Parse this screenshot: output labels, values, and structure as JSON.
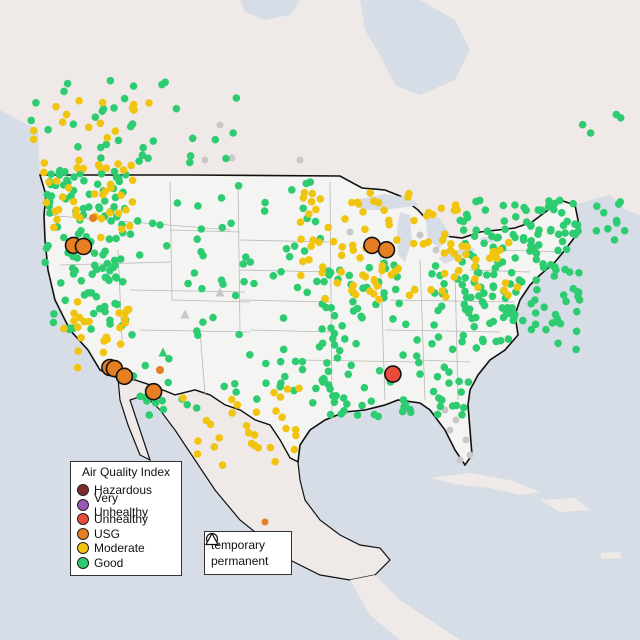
{
  "legend": {
    "title": "Air Quality Index",
    "categories": [
      {
        "label": "Hazardous",
        "color": "#7e2a2a"
      },
      {
        "label": "Very Unhealthy",
        "color": "#9b59b6"
      },
      {
        "label": "Unhealthy",
        "color": "#e74c3c"
      },
      {
        "label": "USG",
        "color": "#e67e22"
      },
      {
        "label": "Moderate",
        "color": "#f1c40f"
      },
      {
        "label": "Good",
        "color": "#2ecc71"
      }
    ],
    "monitor_types": [
      {
        "label": "temporary",
        "symbol": "circle"
      },
      {
        "label": "permanent",
        "symbol": "triangle"
      }
    ]
  },
  "map_style": {
    "water": "#d6dde6",
    "land": "#efeae8",
    "us_land": "#f4f4f2",
    "state_border": "#b8b8b8",
    "country_border": "#111111",
    "no_data_monitor": "#c8c8c8"
  },
  "highlight_monitors": [
    {
      "category": "USG",
      "lat": 45.6,
      "lon": -121.2
    },
    {
      "category": "USG",
      "lat": 45.5,
      "lon": -120.1
    },
    {
      "category": "USG",
      "lat": 45.6,
      "lon": -88.4
    },
    {
      "category": "USG",
      "lat": 45.2,
      "lon": -86.8
    },
    {
      "category": "USG",
      "lat": 34.5,
      "lon": -117.2
    },
    {
      "category": "USG",
      "lat": 34.4,
      "lon": -116.7
    },
    {
      "category": "USG",
      "lat": 33.7,
      "lon": -115.6
    },
    {
      "category": "USG",
      "lat": 32.3,
      "lon": -112.4
    },
    {
      "category": "Unhealthy",
      "lat": 33.9,
      "lon": -86.1
    }
  ]
}
